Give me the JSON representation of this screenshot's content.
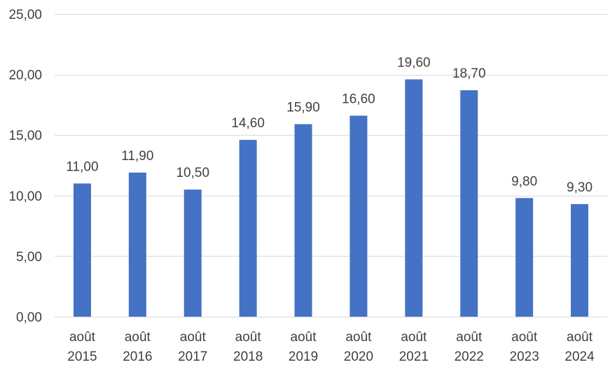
{
  "chart_data": {
    "type": "bar",
    "title": "",
    "xlabel": "",
    "ylabel": "",
    "categories": [
      [
        "août",
        "2015"
      ],
      [
        "août",
        "2016"
      ],
      [
        "août",
        "2017"
      ],
      [
        "août",
        "2018"
      ],
      [
        "août",
        "2019"
      ],
      [
        "août",
        "2020"
      ],
      [
        "août",
        "2021"
      ],
      [
        "août",
        "2022"
      ],
      [
        "août",
        "2023"
      ],
      [
        "août",
        "2024"
      ]
    ],
    "values": [
      11.0,
      11.9,
      10.5,
      14.6,
      15.9,
      16.6,
      19.6,
      18.7,
      9.8,
      9.3
    ],
    "value_labels": [
      "11,00",
      "11,90",
      "10,50",
      "14,60",
      "15,90",
      "16,60",
      "19,60",
      "18,70",
      "9,80",
      "9,30"
    ],
    "ylim": [
      0,
      25
    ],
    "yticks": [
      0,
      5,
      10,
      15,
      20,
      25
    ],
    "ytick_labels": [
      "0,00",
      "5,00",
      "10,00",
      "15,00",
      "20,00",
      "25,00"
    ],
    "grid": true,
    "legend": "none",
    "bar_color": "#4472c4"
  }
}
